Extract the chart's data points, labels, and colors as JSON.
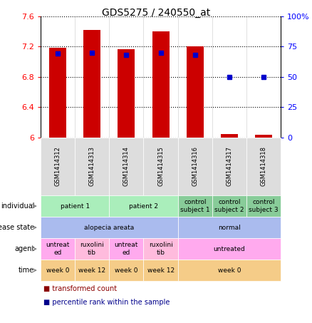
{
  "title": "GDS5275 / 240550_at",
  "samples": [
    "GSM1414312",
    "GSM1414313",
    "GSM1414314",
    "GSM1414315",
    "GSM1414316",
    "GSM1414317",
    "GSM1414318"
  ],
  "transformed_count": [
    7.18,
    7.42,
    7.16,
    7.4,
    7.2,
    6.04,
    6.03
  ],
  "percentile_rank": [
    69,
    70,
    68,
    70,
    68,
    50,
    50
  ],
  "ylim_left": [
    6.0,
    7.6
  ],
  "ylim_right": [
    0,
    100
  ],
  "yticks_left": [
    6.0,
    6.4,
    6.8,
    7.2,
    7.6
  ],
  "yticks_right": [
    0,
    25,
    50,
    75,
    100
  ],
  "ytick_labels_left": [
    "6",
    "6.4",
    "6.8",
    "7.2",
    "7.6"
  ],
  "ytick_labels_right": [
    "0",
    "25",
    "50",
    "75",
    "100%"
  ],
  "bar_color": "#cc0000",
  "dot_color": "#0000cc",
  "bar_bottom": 6.0,
  "row_configs": [
    {
      "label": "individual",
      "items": [
        {
          "text": "patient 1",
          "span": [
            0,
            2
          ],
          "color": "#aaeebb"
        },
        {
          "text": "patient 2",
          "span": [
            2,
            4
          ],
          "color": "#aaeebb"
        },
        {
          "text": "control\nsubject 1",
          "span": [
            4,
            5
          ],
          "color": "#88cc99"
        },
        {
          "text": "control\nsubject 2",
          "span": [
            5,
            6
          ],
          "color": "#88cc99"
        },
        {
          "text": "control\nsubject 3",
          "span": [
            6,
            7
          ],
          "color": "#88cc99"
        }
      ]
    },
    {
      "label": "disease state",
      "items": [
        {
          "text": "alopecia areata",
          "span": [
            0,
            4
          ],
          "color": "#aabbee"
        },
        {
          "text": "normal",
          "span": [
            4,
            7
          ],
          "color": "#aabbee"
        }
      ]
    },
    {
      "label": "agent",
      "items": [
        {
          "text": "untreat\ned",
          "span": [
            0,
            1
          ],
          "color": "#ffaaee"
        },
        {
          "text": "ruxolini\ntib",
          "span": [
            1,
            2
          ],
          "color": "#ffbbdd"
        },
        {
          "text": "untreat\ned",
          "span": [
            2,
            3
          ],
          "color": "#ffaaee"
        },
        {
          "text": "ruxolini\ntib",
          "span": [
            3,
            4
          ],
          "color": "#ffbbdd"
        },
        {
          "text": "untreated",
          "span": [
            4,
            7
          ],
          "color": "#ffaaee"
        }
      ]
    },
    {
      "label": "time",
      "items": [
        {
          "text": "week 0",
          "span": [
            0,
            1
          ],
          "color": "#f5cc88"
        },
        {
          "text": "week 12",
          "span": [
            1,
            2
          ],
          "color": "#f5cc88"
        },
        {
          "text": "week 0",
          "span": [
            2,
            3
          ],
          "color": "#f5cc88"
        },
        {
          "text": "week 12",
          "span": [
            3,
            4
          ],
          "color": "#f5cc88"
        },
        {
          "text": "week 0",
          "span": [
            4,
            7
          ],
          "color": "#f5cc88"
        }
      ]
    }
  ]
}
